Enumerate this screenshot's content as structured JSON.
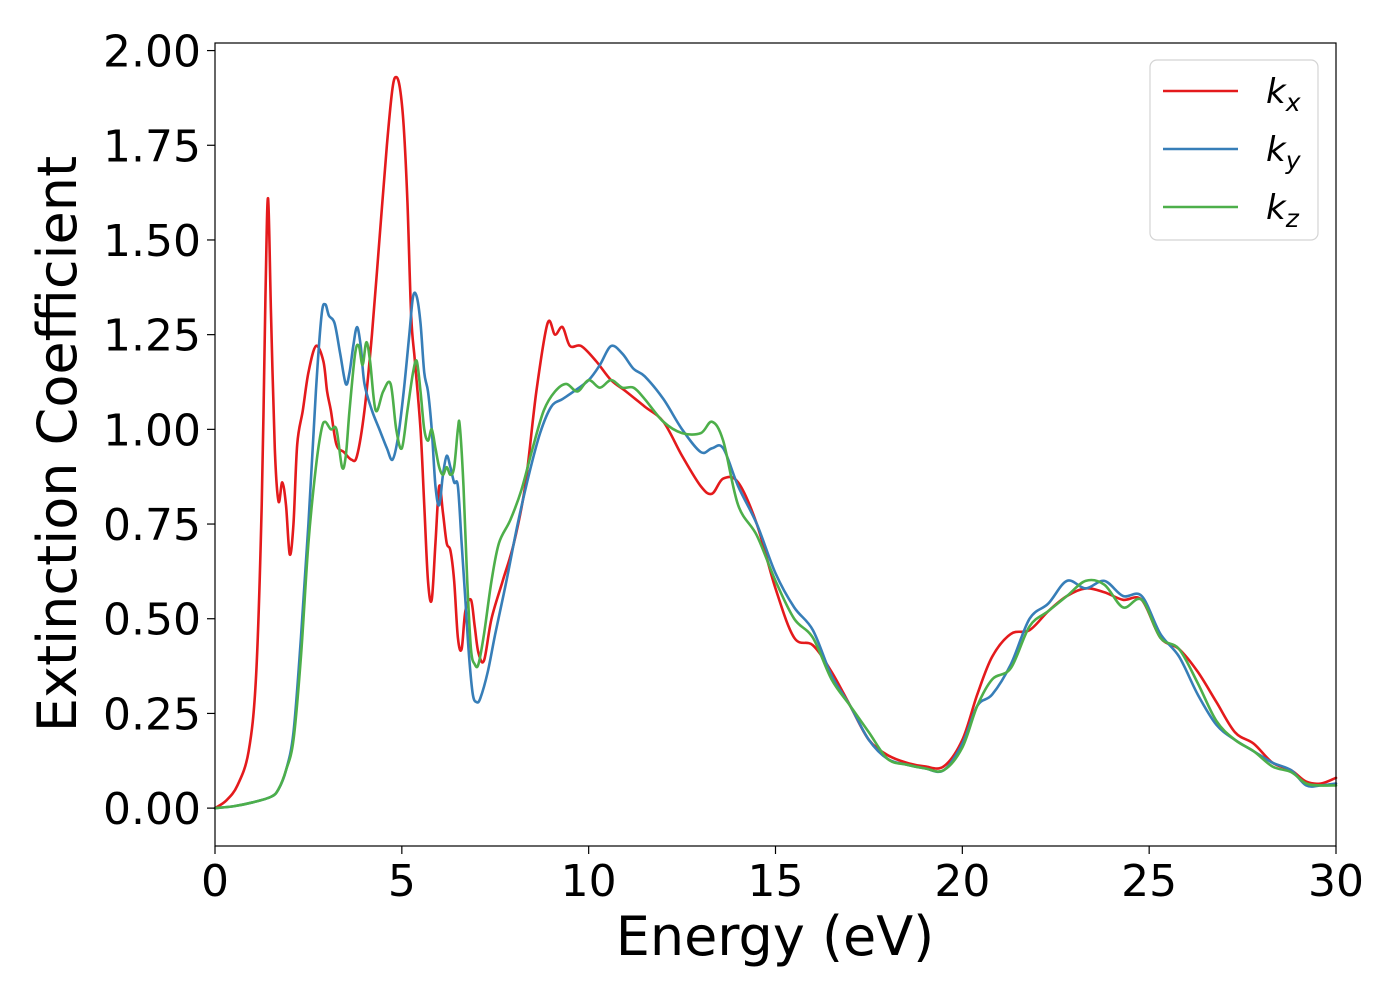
{
  "chart_data": {
    "type": "line",
    "title": "",
    "xlabel": "Energy (eV)",
    "ylabel": "Extinction Coefficient",
    "xlim": [
      0,
      30
    ],
    "ylim": [
      -0.1,
      2.02
    ],
    "xticks": [
      0,
      5,
      10,
      15,
      20,
      25,
      30
    ],
    "xtick_labels": [
      "0",
      "5",
      "10",
      "15",
      "20",
      "25",
      "30"
    ],
    "yticks": [
      0,
      0.25,
      0.5,
      0.75,
      1.0,
      1.25,
      1.5,
      1.75,
      2.0
    ],
    "ytick_labels": [
      "0.00",
      "0.25",
      "0.50",
      "0.75",
      "1.00",
      "1.25",
      "1.50",
      "1.75",
      "2.00"
    ],
    "grid": false,
    "legend_position": "top-right",
    "series": [
      {
        "name": "k",
        "subscript": "x",
        "color": "#e41a1c",
        "x": [
          0,
          0.3,
          0.6,
          0.9,
          1.1,
          1.25,
          1.35,
          1.42,
          1.5,
          1.6,
          1.7,
          1.8,
          1.9,
          2.0,
          2.1,
          2.2,
          2.35,
          2.5,
          2.7,
          2.9,
          3.0,
          3.1,
          3.25,
          3.45,
          3.65,
          3.8,
          4.0,
          4.2,
          4.4,
          4.6,
          4.75,
          4.85,
          4.95,
          5.05,
          5.15,
          5.25,
          5.35,
          5.5,
          5.6,
          5.7,
          5.8,
          5.9,
          6.0,
          6.1,
          6.2,
          6.3,
          6.4,
          6.5,
          6.6,
          6.7,
          6.85,
          6.95,
          7.05,
          7.2,
          7.4,
          7.7,
          8.0,
          8.3,
          8.6,
          8.9,
          9.1,
          9.3,
          9.5,
          9.8,
          10.2,
          10.6,
          11.0,
          11.5,
          12.0,
          12.5,
          13.0,
          13.3,
          13.6,
          14.0,
          14.5,
          15.0,
          15.5,
          16.0,
          16.5,
          17.0,
          17.5,
          18.0,
          18.5,
          19.0,
          19.5,
          20.0,
          20.4,
          20.8,
          21.3,
          21.8,
          22.3,
          22.8,
          23.3,
          23.8,
          24.3,
          24.8,
          25.3,
          25.8,
          26.3,
          26.8,
          27.3,
          27.8,
          28.3,
          28.8,
          29.2,
          29.6,
          30.0
        ],
        "values": [
          0.0,
          0.02,
          0.06,
          0.15,
          0.35,
          0.8,
          1.35,
          1.61,
          1.3,
          0.95,
          0.81,
          0.86,
          0.8,
          0.67,
          0.75,
          0.96,
          1.05,
          1.15,
          1.22,
          1.18,
          1.1,
          1.05,
          0.96,
          0.94,
          0.92,
          0.93,
          1.05,
          1.25,
          1.5,
          1.75,
          1.9,
          1.93,
          1.9,
          1.8,
          1.6,
          1.3,
          1.18,
          1.0,
          0.8,
          0.6,
          0.55,
          0.7,
          0.85,
          0.78,
          0.7,
          0.68,
          0.6,
          0.45,
          0.42,
          0.52,
          0.55,
          0.48,
          0.41,
          0.39,
          0.5,
          0.6,
          0.7,
          0.85,
          1.1,
          1.28,
          1.25,
          1.27,
          1.22,
          1.22,
          1.18,
          1.13,
          1.1,
          1.06,
          1.02,
          0.93,
          0.85,
          0.83,
          0.87,
          0.86,
          0.75,
          0.58,
          0.45,
          0.43,
          0.36,
          0.27,
          0.18,
          0.14,
          0.12,
          0.11,
          0.11,
          0.18,
          0.3,
          0.4,
          0.46,
          0.47,
          0.52,
          0.56,
          0.58,
          0.57,
          0.55,
          0.55,
          0.45,
          0.42,
          0.36,
          0.28,
          0.2,
          0.17,
          0.12,
          0.1,
          0.07,
          0.065,
          0.08
        ]
      },
      {
        "name": "k",
        "subscript": "y",
        "color": "#377eb8",
        "x": [
          0,
          0.5,
          1.0,
          1.5,
          1.7,
          1.9,
          2.1,
          2.3,
          2.5,
          2.7,
          2.85,
          2.95,
          3.05,
          3.2,
          3.35,
          3.5,
          3.6,
          3.7,
          3.8,
          3.9,
          4.0,
          4.2,
          4.4,
          4.6,
          4.75,
          4.9,
          5.05,
          5.2,
          5.3,
          5.4,
          5.5,
          5.6,
          5.7,
          5.8,
          5.9,
          6.0,
          6.1,
          6.2,
          6.3,
          6.4,
          6.5,
          6.6,
          6.7,
          6.8,
          6.9,
          7.0,
          7.1,
          7.3,
          7.5,
          7.8,
          8.1,
          8.4,
          8.7,
          9.0,
          9.3,
          9.6,
          10.0,
          10.3,
          10.6,
          10.9,
          11.2,
          11.5,
          12.0,
          12.5,
          13.0,
          13.3,
          13.6,
          14.0,
          14.5,
          15.0,
          15.5,
          16.0,
          16.5,
          17.0,
          17.5,
          18.0,
          18.5,
          19.0,
          19.5,
          20.0,
          20.4,
          20.8,
          21.3,
          21.8,
          22.3,
          22.8,
          23.3,
          23.8,
          24.3,
          24.8,
          25.3,
          25.8,
          26.3,
          26.8,
          27.3,
          27.8,
          28.3,
          28.8,
          29.2,
          29.6,
          30.0
        ],
        "values": [
          0.0,
          0.005,
          0.015,
          0.03,
          0.05,
          0.1,
          0.2,
          0.45,
          0.75,
          1.1,
          1.3,
          1.33,
          1.3,
          1.28,
          1.2,
          1.12,
          1.15,
          1.22,
          1.27,
          1.22,
          1.12,
          1.05,
          1.0,
          0.95,
          0.92,
          0.98,
          1.1,
          1.25,
          1.35,
          1.35,
          1.28,
          1.15,
          1.1,
          1.0,
          0.85,
          0.8,
          0.88,
          0.93,
          0.9,
          0.86,
          0.85,
          0.7,
          0.55,
          0.4,
          0.3,
          0.28,
          0.29,
          0.36,
          0.46,
          0.6,
          0.75,
          0.88,
          0.99,
          1.06,
          1.08,
          1.1,
          1.13,
          1.17,
          1.22,
          1.2,
          1.16,
          1.14,
          1.08,
          1.0,
          0.94,
          0.95,
          0.95,
          0.85,
          0.75,
          0.62,
          0.53,
          0.47,
          0.35,
          0.27,
          0.18,
          0.13,
          0.115,
          0.105,
          0.1,
          0.17,
          0.27,
          0.3,
          0.38,
          0.5,
          0.54,
          0.6,
          0.58,
          0.6,
          0.56,
          0.56,
          0.46,
          0.4,
          0.3,
          0.22,
          0.18,
          0.15,
          0.12,
          0.1,
          0.06,
          0.06,
          0.065
        ]
      },
      {
        "name": "k",
        "subscript": "z",
        "color": "#4daf4a",
        "x": [
          0,
          0.5,
          1.0,
          1.5,
          1.7,
          1.9,
          2.1,
          2.3,
          2.5,
          2.7,
          2.85,
          2.95,
          3.1,
          3.25,
          3.4,
          3.5,
          3.6,
          3.75,
          3.85,
          3.95,
          4.05,
          4.15,
          4.3,
          4.5,
          4.7,
          4.85,
          5.0,
          5.15,
          5.3,
          5.4,
          5.5,
          5.6,
          5.7,
          5.8,
          5.9,
          6.0,
          6.1,
          6.2,
          6.3,
          6.4,
          6.5,
          6.55,
          6.65,
          6.75,
          6.85,
          6.95,
          7.05,
          7.2,
          7.4,
          7.6,
          7.9,
          8.2,
          8.5,
          8.8,
          9.1,
          9.4,
          9.7,
          10.0,
          10.3,
          10.6,
          10.9,
          11.2,
          11.5,
          12.0,
          12.5,
          13.0,
          13.3,
          13.6,
          14.0,
          14.5,
          15.0,
          15.5,
          16.0,
          16.5,
          17.0,
          17.5,
          18.0,
          18.5,
          19.0,
          19.5,
          20.0,
          20.4,
          20.8,
          21.3,
          21.8,
          22.3,
          22.8,
          23.3,
          23.8,
          24.3,
          24.8,
          25.3,
          25.8,
          26.3,
          26.8,
          27.3,
          27.8,
          28.3,
          28.8,
          29.2,
          29.6,
          30.0
        ],
        "values": [
          0.0,
          0.005,
          0.015,
          0.03,
          0.05,
          0.1,
          0.18,
          0.4,
          0.7,
          0.9,
          1.0,
          1.02,
          1.0,
          1.0,
          0.9,
          0.93,
          1.05,
          1.2,
          1.22,
          1.17,
          1.23,
          1.18,
          1.05,
          1.1,
          1.12,
          1.0,
          0.95,
          1.05,
          1.15,
          1.18,
          1.1,
          1.0,
          0.97,
          1.0,
          0.95,
          0.9,
          0.88,
          0.9,
          0.88,
          0.9,
          1.0,
          1.01,
          0.85,
          0.6,
          0.42,
          0.38,
          0.38,
          0.46,
          0.6,
          0.7,
          0.76,
          0.84,
          0.95,
          1.05,
          1.1,
          1.12,
          1.1,
          1.13,
          1.11,
          1.13,
          1.11,
          1.11,
          1.08,
          1.02,
          0.99,
          0.99,
          1.02,
          0.97,
          0.8,
          0.72,
          0.6,
          0.5,
          0.45,
          0.34,
          0.27,
          0.2,
          0.13,
          0.115,
          0.105,
          0.1,
          0.16,
          0.27,
          0.34,
          0.37,
          0.48,
          0.52,
          0.56,
          0.6,
          0.59,
          0.53,
          0.55,
          0.45,
          0.42,
          0.33,
          0.23,
          0.18,
          0.15,
          0.11,
          0.095,
          0.065,
          0.06,
          0.06
        ]
      }
    ]
  }
}
